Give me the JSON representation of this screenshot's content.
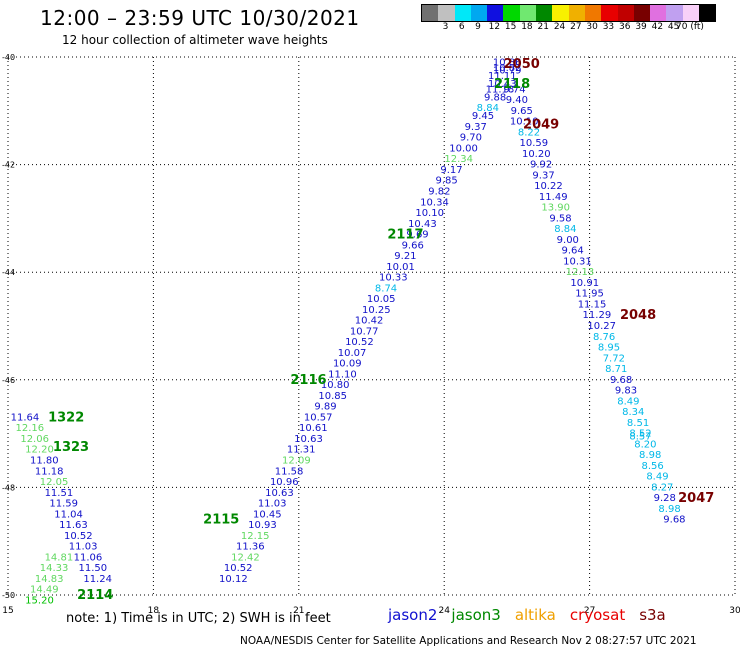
{
  "header": {
    "title": "12:00 – 23:59 UTC 10/30/2021",
    "subtitle": "12 hour collection of altimeter wave heights"
  },
  "color_scale": {
    "colors": [
      "#707070",
      "#c0c0c0",
      "#00e8f8",
      "#00a8f0",
      "#1010e0",
      "#00d800",
      "#70e870",
      "#008800",
      "#f8f000",
      "#f0b000",
      "#f07800",
      "#e80000",
      "#c00000",
      "#780000",
      "#e070e0",
      "#c0a0f0",
      "#f8d0f8",
      "#000000"
    ],
    "labels": [
      "3",
      "6",
      "9",
      "12",
      "15",
      "18",
      "21",
      "24",
      "27",
      "30",
      "33",
      "36",
      "39",
      "42",
      "45",
      "70 (ft)"
    ]
  },
  "note": "note:  1) Time is in UTC; 2) SWH is in feet",
  "legend": [
    {
      "label": "jason2",
      "color": "#1010d0"
    },
    {
      "label": "jason3",
      "color": "#008800"
    },
    {
      "label": "altika",
      "color": "#f0a000"
    },
    {
      "label": "cryosat",
      "color": "#e80000"
    },
    {
      "label": "s3a",
      "color": "#780000"
    }
  ],
  "footer": "NOAA/NESDIS Center for Satellite Applications and Research    Nov  2 08:27:57 UTC 2021",
  "chart_data": {
    "type": "scatter",
    "xlim": [
      15,
      30
    ],
    "ylim": [
      -50,
      -40
    ],
    "xticks": [
      "15",
      "18",
      "21",
      "24",
      "27",
      "30"
    ],
    "yticks": [
      "-40",
      "-42",
      "-44",
      "-46",
      "-48",
      "-50"
    ],
    "grid": true,
    "pass_labels": [
      {
        "text": "2050",
        "x": 25.6,
        "y": -40.13,
        "color": "#780000"
      },
      {
        "text": "2118",
        "x": 25.4,
        "y": -40.5,
        "color": "#008800"
      },
      {
        "text": "2049",
        "x": 26.0,
        "y": -41.25,
        "color": "#780000"
      },
      {
        "text": "2117",
        "x": 23.2,
        "y": -43.3,
        "color": "#008800"
      },
      {
        "text": "2048",
        "x": 28.0,
        "y": -44.8,
        "color": "#780000"
      },
      {
        "text": "2116",
        "x": 21.2,
        "y": -46.0,
        "color": "#008800"
      },
      {
        "text": "1322",
        "x": 16.2,
        "y": -46.7,
        "color": "#008800"
      },
      {
        "text": "1323",
        "x": 16.3,
        "y": -47.25,
        "color": "#008800"
      },
      {
        "text": "2047",
        "x": 29.2,
        "y": -48.2,
        "color": "#780000"
      },
      {
        "text": "2115",
        "x": 19.4,
        "y": -48.6,
        "color": "#008800"
      },
      {
        "text": "2114",
        "x": 16.8,
        "y": -50.0,
        "color": "#008800"
      }
    ],
    "series": [
      {
        "name": "jason3",
        "points": [
          {
            "x": 25.3,
            "y": -40.1,
            "v": "10.86"
          },
          {
            "x": 25.3,
            "y": -40.2,
            "v": "10.82"
          },
          {
            "x": 25.3,
            "y": -40.25,
            "v": "10.79"
          },
          {
            "x": 25.2,
            "y": -40.35,
            "v": "11.11"
          },
          {
            "x": 25.2,
            "y": -40.5,
            "v": "10.43"
          },
          {
            "x": 25.15,
            "y": -40.6,
            "v": "11.18"
          },
          {
            "x": 25.05,
            "y": -40.75,
            "v": "9.88"
          },
          {
            "x": 24.9,
            "y": -40.95,
            "v": "8.84"
          },
          {
            "x": 24.8,
            "y": -41.1,
            "v": "9.45"
          },
          {
            "x": 24.65,
            "y": -41.3,
            "v": "9.37"
          },
          {
            "x": 24.55,
            "y": -41.5,
            "v": "9.70"
          },
          {
            "x": 24.4,
            "y": -41.7,
            "v": "10.00"
          },
          {
            "x": 24.3,
            "y": -41.9,
            "v": "12.34"
          },
          {
            "x": 24.15,
            "y": -42.1,
            "v": "9.17"
          },
          {
            "x": 24.05,
            "y": -42.3,
            "v": "9.85"
          },
          {
            "x": 23.9,
            "y": -42.5,
            "v": "9.82"
          },
          {
            "x": 23.8,
            "y": -42.7,
            "v": "10.34"
          },
          {
            "x": 23.7,
            "y": -42.9,
            "v": "10.10"
          },
          {
            "x": 23.55,
            "y": -43.1,
            "v": "10.43"
          },
          {
            "x": 23.45,
            "y": -43.3,
            "v": "9.69"
          },
          {
            "x": 23.35,
            "y": -43.5,
            "v": "9.66"
          },
          {
            "x": 23.2,
            "y": -43.7,
            "v": "9.21"
          },
          {
            "x": 23.1,
            "y": -43.9,
            "v": "10.01"
          },
          {
            "x": 22.95,
            "y": -44.1,
            "v": "10.33"
          },
          {
            "x": 22.8,
            "y": -44.3,
            "v": "8.74"
          },
          {
            "x": 22.7,
            "y": -44.5,
            "v": "10.05"
          },
          {
            "x": 22.6,
            "y": -44.7,
            "v": "10.25"
          },
          {
            "x": 22.45,
            "y": -44.9,
            "v": "10.42"
          },
          {
            "x": 22.35,
            "y": -45.1,
            "v": "10.77"
          },
          {
            "x": 22.25,
            "y": -45.3,
            "v": "10.52"
          },
          {
            "x": 22.1,
            "y": -45.5,
            "v": "10.07"
          },
          {
            "x": 22.0,
            "y": -45.7,
            "v": "10.09"
          },
          {
            "x": 21.9,
            "y": -45.9,
            "v": "11.10"
          },
          {
            "x": 21.75,
            "y": -46.1,
            "v": "10.80"
          },
          {
            "x": 21.7,
            "y": -46.3,
            "v": "10.85"
          },
          {
            "x": 21.55,
            "y": -46.5,
            "v": "9.89"
          },
          {
            "x": 21.4,
            "y": -46.7,
            "v": "10.57"
          },
          {
            "x": 21.3,
            "y": -46.9,
            "v": "10.61"
          },
          {
            "x": 21.2,
            "y": -47.1,
            "v": "10.63"
          },
          {
            "x": 21.05,
            "y": -47.3,
            "v": "11.31"
          },
          {
            "x": 20.95,
            "y": -47.5,
            "v": "12.09"
          },
          {
            "x": 20.8,
            "y": -47.7,
            "v": "11.58"
          },
          {
            "x": 20.7,
            "y": -47.9,
            "v": "10.96"
          },
          {
            "x": 20.6,
            "y": -48.1,
            "v": "10.63"
          },
          {
            "x": 20.45,
            "y": -48.3,
            "v": "11.03"
          },
          {
            "x": 20.35,
            "y": -48.5,
            "v": "10.45"
          },
          {
            "x": 20.25,
            "y": -48.7,
            "v": "10.93"
          },
          {
            "x": 20.1,
            "y": -48.9,
            "v": "12.15"
          },
          {
            "x": 20.0,
            "y": -49.1,
            "v": "11.36"
          },
          {
            "x": 19.9,
            "y": -49.3,
            "v": "12.42"
          },
          {
            "x": 19.75,
            "y": -49.5,
            "v": "10.52"
          },
          {
            "x": 19.65,
            "y": -49.7,
            "v": "10.12"
          },
          {
            "x": 15.35,
            "y": -46.7,
            "v": "11.64"
          },
          {
            "x": 15.45,
            "y": -46.9,
            "v": "12.16"
          },
          {
            "x": 15.55,
            "y": -47.1,
            "v": "12.06"
          },
          {
            "x": 15.65,
            "y": -47.3,
            "v": "12.20"
          },
          {
            "x": 15.75,
            "y": -47.5,
            "v": "11.80"
          },
          {
            "x": 15.85,
            "y": -47.7,
            "v": "11.18"
          },
          {
            "x": 15.95,
            "y": -47.9,
            "v": "12.05"
          },
          {
            "x": 16.05,
            "y": -48.1,
            "v": "11.51"
          },
          {
            "x": 16.15,
            "y": -48.3,
            "v": "11.59"
          },
          {
            "x": 16.25,
            "y": -48.5,
            "v": "11.04"
          },
          {
            "x": 16.35,
            "y": -48.7,
            "v": "11.63"
          },
          {
            "x": 16.45,
            "y": -48.9,
            "v": "10.52"
          },
          {
            "x": 16.55,
            "y": -49.1,
            "v": "11.03"
          },
          {
            "x": 16.65,
            "y": -49.3,
            "v": "11.06"
          },
          {
            "x": 16.75,
            "y": -49.5,
            "v": "11.50"
          },
          {
            "x": 16.85,
            "y": -49.7,
            "v": "11.24"
          },
          {
            "x": 16.05,
            "y": -49.3,
            "v": "14.81"
          },
          {
            "x": 15.95,
            "y": -49.5,
            "v": "14.33"
          },
          {
            "x": 15.85,
            "y": -49.7,
            "v": "14.83"
          },
          {
            "x": 15.75,
            "y": -49.9,
            "v": "14.49"
          },
          {
            "x": 15.65,
            "y": -50.1,
            "v": "15.20"
          }
        ]
      },
      {
        "name": "s3a",
        "points": [
          {
            "x": 25.45,
            "y": -40.6,
            "v": "9.74"
          },
          {
            "x": 25.5,
            "y": -40.8,
            "v": "9.40"
          },
          {
            "x": 25.6,
            "y": -41.0,
            "v": "9.65"
          },
          {
            "x": 25.65,
            "y": -41.2,
            "v": "10.10"
          },
          {
            "x": 25.75,
            "y": -41.4,
            "v": "8.22"
          },
          {
            "x": 25.85,
            "y": -41.6,
            "v": "10.59"
          },
          {
            "x": 25.9,
            "y": -41.8,
            "v": "10.20"
          },
          {
            "x": 26.0,
            "y": -42.0,
            "v": "9.92"
          },
          {
            "x": 26.05,
            "y": -42.2,
            "v": "9.37"
          },
          {
            "x": 26.15,
            "y": -42.4,
            "v": "10.22"
          },
          {
            "x": 26.25,
            "y": -42.6,
            "v": "11.49"
          },
          {
            "x": 26.3,
            "y": -42.8,
            "v": "13.90"
          },
          {
            "x": 26.4,
            "y": -43.0,
            "v": "9.58"
          },
          {
            "x": 26.5,
            "y": -43.2,
            "v": "8.84"
          },
          {
            "x": 26.55,
            "y": -43.4,
            "v": "9.00"
          },
          {
            "x": 26.65,
            "y": -43.6,
            "v": "9.64"
          },
          {
            "x": 26.75,
            "y": -43.8,
            "v": "10.31"
          },
          {
            "x": 26.8,
            "y": -44.0,
            "v": "12.13"
          },
          {
            "x": 26.9,
            "y": -44.2,
            "v": "10.91"
          },
          {
            "x": 27.0,
            "y": -44.4,
            "v": "11.95"
          },
          {
            "x": 27.05,
            "y": -44.6,
            "v": "11.15"
          },
          {
            "x": 27.15,
            "y": -44.8,
            "v": "11.29"
          },
          {
            "x": 27.25,
            "y": -45.0,
            "v": "10.27"
          },
          {
            "x": 27.3,
            "y": -45.2,
            "v": "8.76"
          },
          {
            "x": 27.4,
            "y": -45.4,
            "v": "8.95"
          },
          {
            "x": 27.5,
            "y": -45.6,
            "v": "7.72"
          },
          {
            "x": 27.55,
            "y": -45.8,
            "v": "8.71"
          },
          {
            "x": 27.65,
            "y": -46.0,
            "v": "9.68"
          },
          {
            "x": 27.75,
            "y": -46.2,
            "v": "9.83"
          },
          {
            "x": 27.8,
            "y": -46.4,
            "v": "8.49"
          },
          {
            "x": 27.9,
            "y": -46.6,
            "v": "8.34"
          },
          {
            "x": 28.0,
            "y": -46.8,
            "v": "8.51"
          },
          {
            "x": 28.05,
            "y": -47.0,
            "v": "8.52"
          },
          {
            "x": 28.05,
            "y": -47.05,
            "v": "8.57"
          },
          {
            "x": 28.15,
            "y": -47.2,
            "v": "8.20"
          },
          {
            "x": 28.25,
            "y": -47.4,
            "v": "8.98"
          },
          {
            "x": 28.3,
            "y": -47.6,
            "v": "8.56"
          },
          {
            "x": 28.4,
            "y": -47.8,
            "v": "8.49"
          },
          {
            "x": 28.5,
            "y": -48.0,
            "v": "8.27"
          },
          {
            "x": 28.55,
            "y": -48.2,
            "v": "9.28"
          },
          {
            "x": 28.65,
            "y": -48.4,
            "v": "8.98"
          },
          {
            "x": 28.75,
            "y": -48.6,
            "v": "9.68"
          }
        ]
      }
    ]
  }
}
